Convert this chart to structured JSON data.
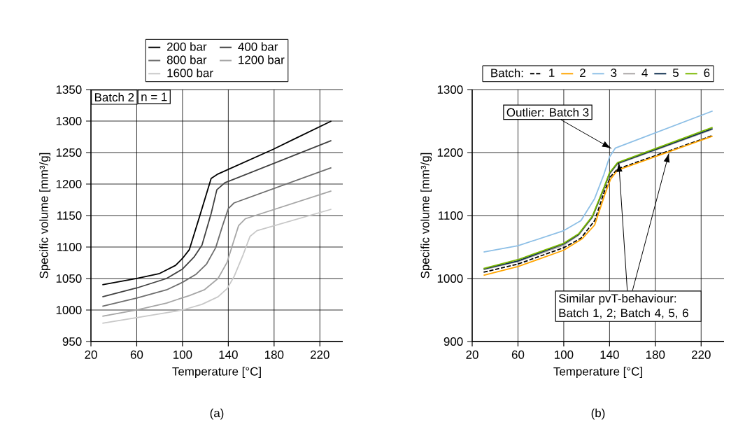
{
  "chart_data": [
    {
      "type": "line",
      "xlabel": "Temperature   [°C]",
      "ylabel": "Specific volume   [mm³/g]",
      "xlim": [
        20,
        240
      ],
      "ylim": [
        950,
        1350
      ],
      "xticks": [
        20,
        60,
        100,
        140,
        180,
        220
      ],
      "yticks": [
        950,
        1000,
        1050,
        1100,
        1150,
        1200,
        1250,
        1300,
        1350
      ],
      "grid": true,
      "legend": "top",
      "series": [
        {
          "name": "200 bar",
          "color": "#000000",
          "x": [
            30,
            60,
            80,
            94,
            100,
            106,
            115,
            125,
            131,
            179,
            197,
            230
          ],
          "values": [
            1040,
            1050,
            1058,
            1071,
            1082,
            1096,
            1149,
            1209,
            1216,
            1255,
            1271,
            1300
          ]
        },
        {
          "name": "400 bar",
          "color": "#404040",
          "x": [
            30,
            60,
            86,
            100,
            110,
            117,
            125,
            130,
            137,
            230
          ],
          "values": [
            1021,
            1035,
            1050,
            1065,
            1084,
            1103,
            1153,
            1191,
            1202,
            1269
          ]
        },
        {
          "name": "800 bar",
          "color": "#6e6e6e",
          "x": [
            30,
            60,
            86,
            100,
            112,
            121,
            129,
            135,
            140,
            145,
            230
          ],
          "values": [
            1006,
            1019,
            1032,
            1044,
            1057,
            1073,
            1099,
            1134,
            1161,
            1170,
            1226
          ]
        },
        {
          "name": "1200 bar",
          "color": "#a6a6a6",
          "x": [
            30,
            60,
            86,
            106,
            119,
            131,
            139,
            145,
            149,
            155,
            230
          ],
          "values": [
            990,
            1000,
            1011,
            1023,
            1032,
            1050,
            1076,
            1111,
            1134,
            1145,
            1189
          ]
        },
        {
          "name": "1600 bar",
          "color": "#c8c8c8",
          "x": [
            30,
            60,
            100,
            117,
            131,
            139,
            145,
            153,
            159,
            165,
            230
          ],
          "values": [
            979,
            988,
            1000,
            1009,
            1021,
            1034,
            1053,
            1088,
            1117,
            1126,
            1160
          ]
        }
      ],
      "annotations": [
        "Batch 2",
        "n = 1",
        "(a)"
      ]
    },
    {
      "type": "line",
      "xlabel": "Temperature   [°C]",
      "ylabel": "Specific volume   [mm³/g]",
      "xlim": [
        20,
        240
      ],
      "ylim": [
        900,
        1300
      ],
      "xticks": [
        20,
        60,
        100,
        140,
        180,
        220
      ],
      "yticks": [
        900,
        1000,
        1100,
        1200,
        1300
      ],
      "grid": true,
      "legend": "top",
      "legend_title": "Batch:",
      "series": [
        {
          "name": "1",
          "color": "#000000",
          "line_style": "dashed",
          "x": [
            30,
            60,
            100,
            115,
            127,
            136,
            141,
            147,
            230
          ],
          "values": [
            1010,
            1023,
            1049,
            1064,
            1092,
            1141,
            1162,
            1174,
            1227
          ]
        },
        {
          "name": "2",
          "color": "#ffa500",
          "x": [
            30,
            60,
            100,
            116,
            127,
            136,
            141,
            147,
            230
          ],
          "values": [
            1005,
            1019,
            1045,
            1063,
            1085,
            1134,
            1158,
            1172,
            1226
          ]
        },
        {
          "name": "3",
          "color": "#8dbfe6",
          "x": [
            30,
            60,
            100,
            115,
            127,
            135,
            140,
            145,
            230
          ],
          "values": [
            1042,
            1052,
            1076,
            1092,
            1127,
            1165,
            1193,
            1207,
            1266
          ]
        },
        {
          "name": "4",
          "color": "#aaa6a6",
          "x": [
            30,
            60,
            100,
            113,
            125,
            135,
            140,
            147,
            230
          ],
          "values": [
            1014,
            1027,
            1053,
            1069,
            1097,
            1142,
            1166,
            1182,
            1237
          ]
        },
        {
          "name": "5",
          "color": "#0d2e4e",
          "x": [
            30,
            60,
            100,
            113,
            125,
            135,
            140,
            147,
            230
          ],
          "values": [
            1015,
            1028,
            1055,
            1070,
            1098,
            1143,
            1167,
            1183,
            1238
          ]
        },
        {
          "name": "6",
          "color": "#7bb800",
          "x": [
            30,
            60,
            100,
            113,
            125,
            135,
            140,
            147,
            230
          ],
          "values": [
            1016,
            1030,
            1056,
            1071,
            1099,
            1144,
            1168,
            1184,
            1240
          ]
        }
      ],
      "annotations": [
        "Outlier: Batch 3",
        "Similar pvT-behaviour: Batch 1, 2; Batch 4, 5, 6",
        "(b)"
      ]
    }
  ]
}
